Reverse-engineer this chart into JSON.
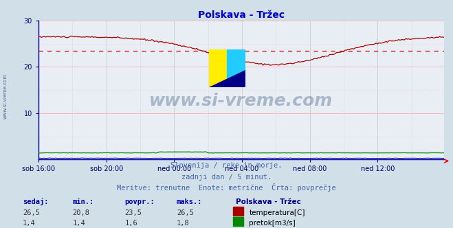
{
  "title": "Polskava - Tržec",
  "bg_color": "#d0dfe8",
  "plot_bg_color": "#e8eef4",
  "title_color": "#0000cc",
  "axis_color": "#000088",
  "tick_label_color": "#000066",
  "subtitle_lines": [
    "Slovenija / reke in morje.",
    "zadnji dan / 5 minut.",
    "Meritve: trenutne  Enote: metrične  Črta: povprečje"
  ],
  "subtitle_color": "#4466aa",
  "xlabels": [
    "sob 16:00",
    "sob 20:00",
    "ned 00:00",
    "ned 04:00",
    "ned 08:00",
    "ned 12:00"
  ],
  "xtick_positions": [
    0,
    48,
    96,
    144,
    192,
    240
  ],
  "ylim": [
    0,
    30
  ],
  "ytick_vals": [
    10,
    20,
    30
  ],
  "temp_color": "#aa0000",
  "flow_color": "#008800",
  "level_color": "#0000cc",
  "avg_color": "#cc0000",
  "avg_value": 23.5,
  "legend_title": "Polskava - Tržec",
  "legend_title_color": "#000088",
  "legend_text_color": "#000000",
  "stat_labels": [
    "sedaj:",
    "min.:",
    "povpr.:",
    "maks.:"
  ],
  "stat_temp": [
    26.5,
    20.8,
    23.5,
    26.5
  ],
  "stat_flow": [
    1.4,
    1.4,
    1.6,
    1.8
  ],
  "watermark": "www.si-vreme.com",
  "watermark_color": "#1a3a6a",
  "n_points": 288
}
